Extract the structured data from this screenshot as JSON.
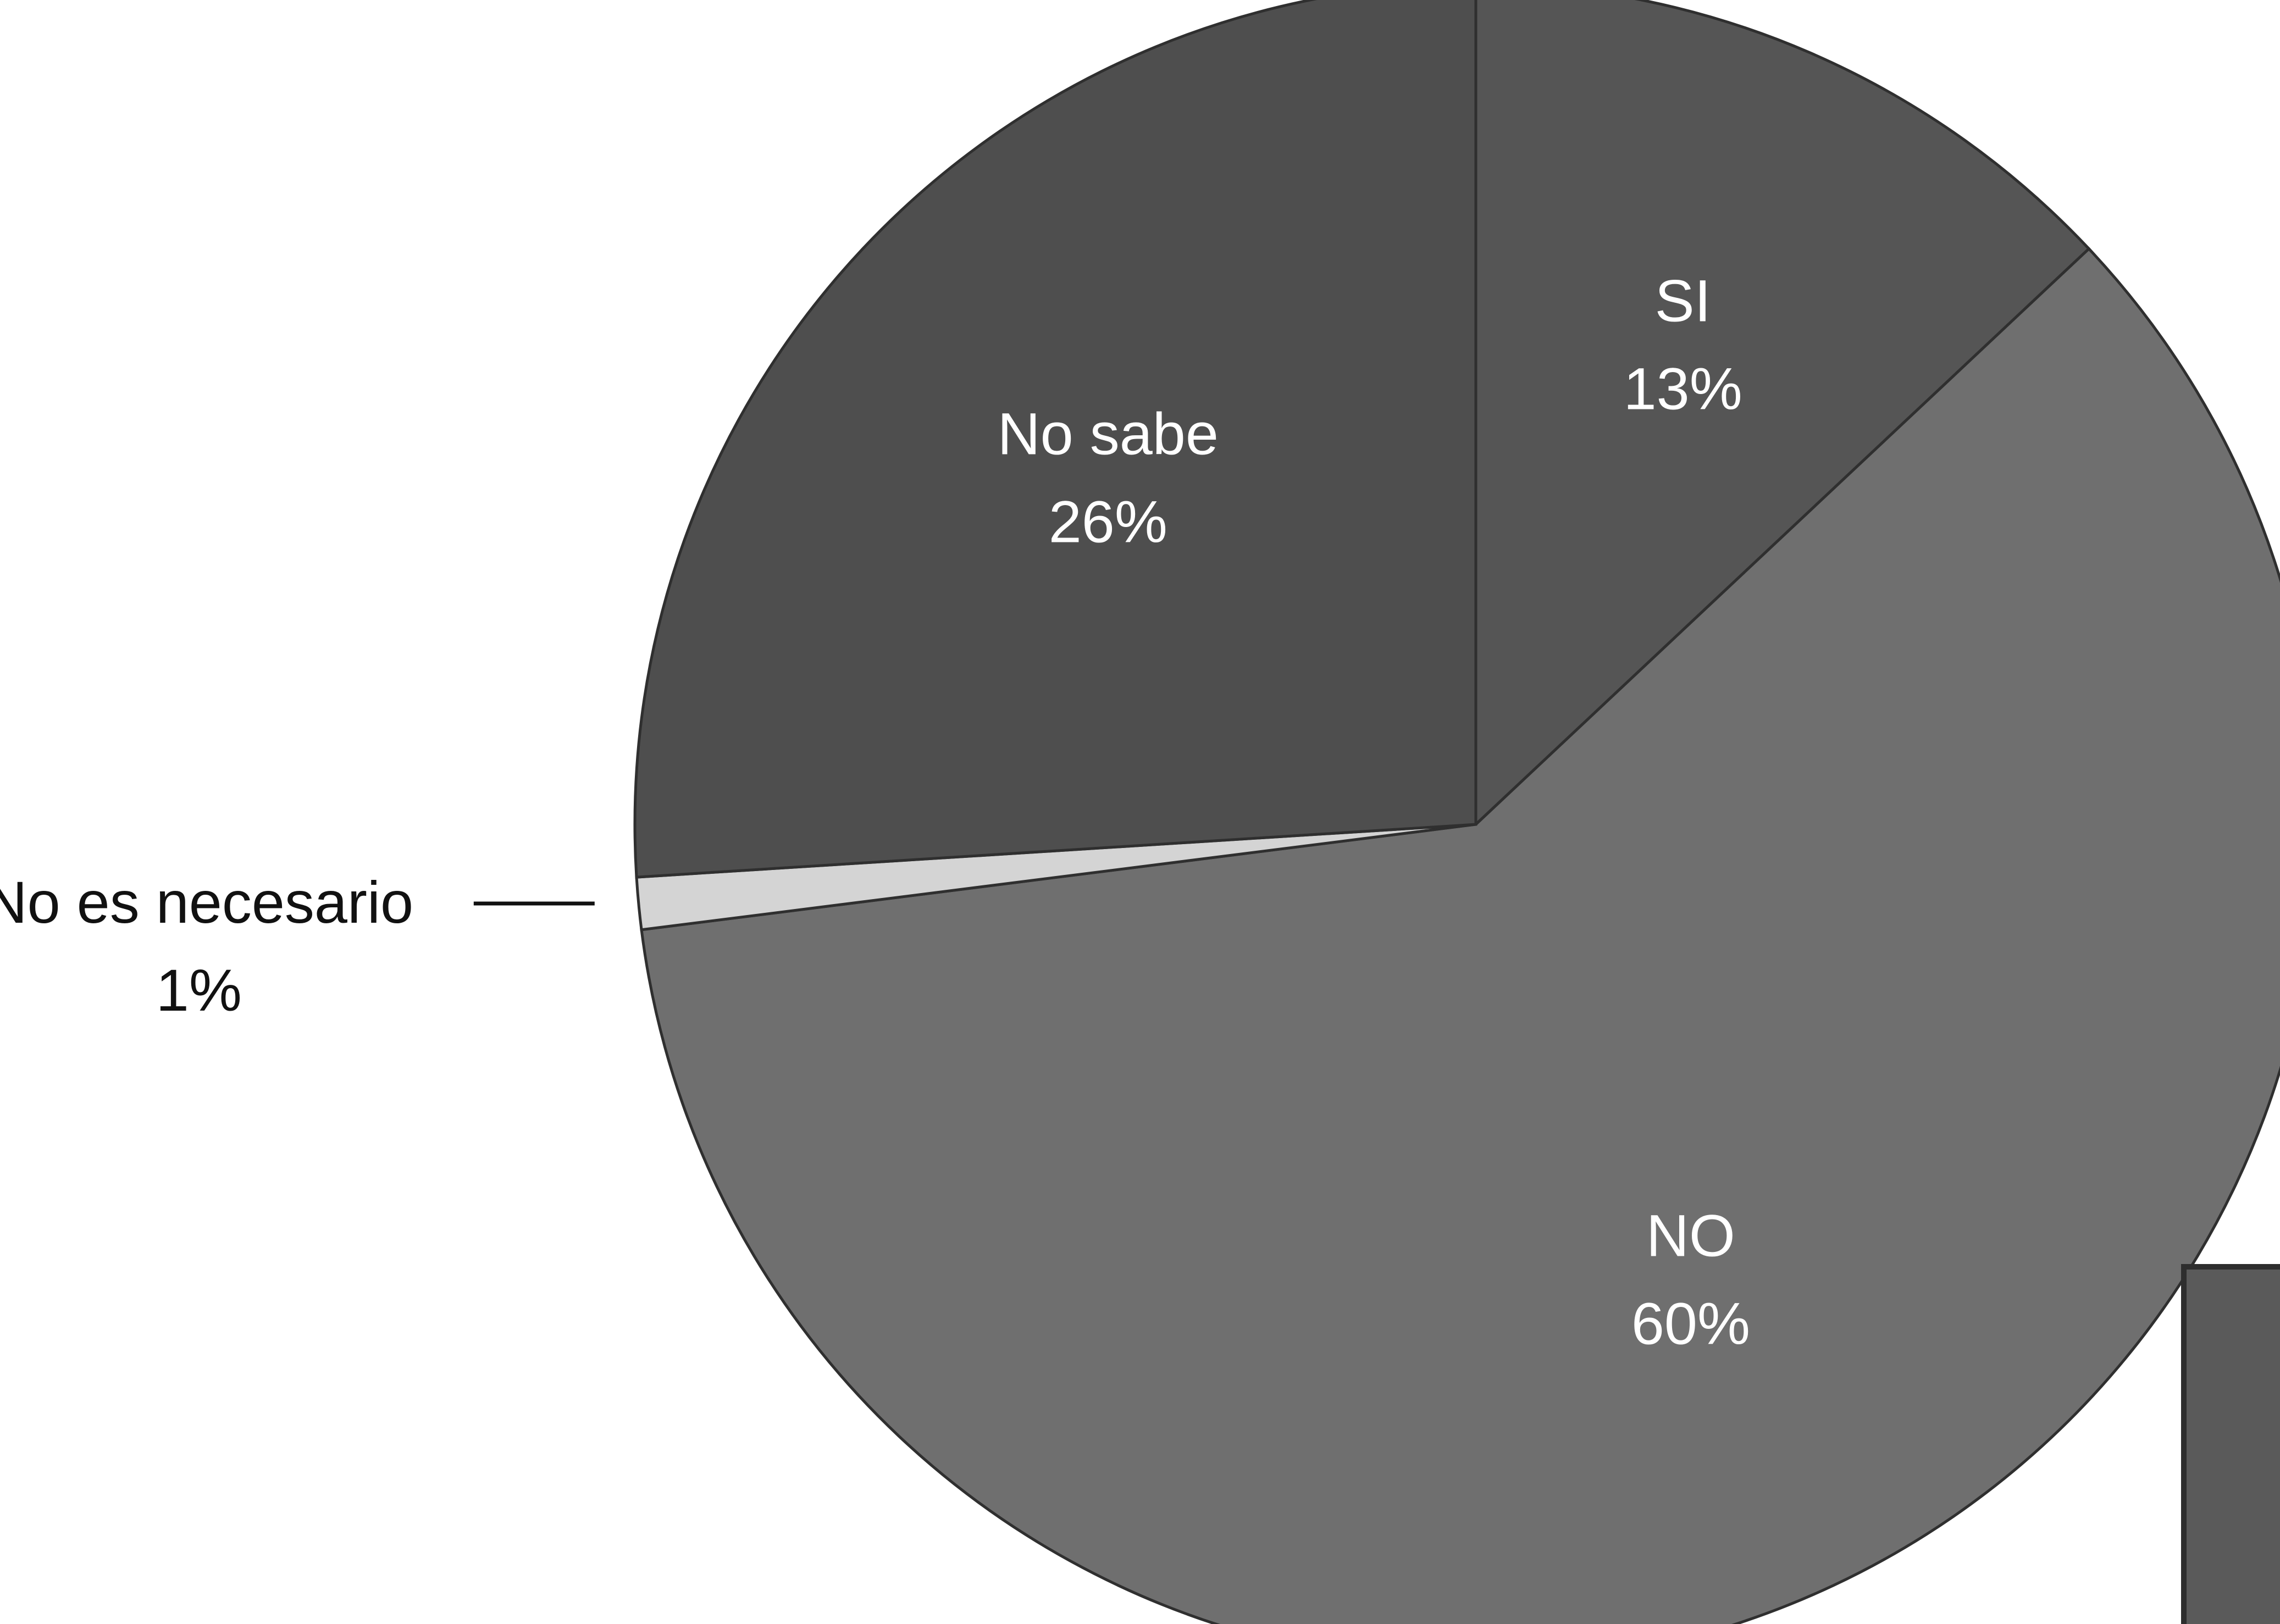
{
  "chart_data": {
    "type": "pie",
    "title": "",
    "start_angle_deg": 0,
    "direction": "clockwise",
    "legend": "none",
    "slices": [
      {
        "label": "SI",
        "value_label": "13%",
        "value": 13,
        "color": "#555555",
        "label_color": "#ffffff",
        "label_placement": "inside"
      },
      {
        "label": "NO",
        "value_label": "60%",
        "value": 60,
        "color": "#6f6f6f",
        "label_color": "#ffffff",
        "label_placement": "inside"
      },
      {
        "label": "No es necesario",
        "value_label": "1%",
        "value": 1,
        "color": "#d4d4d4",
        "label_color": "#111111",
        "label_placement": "outside-left"
      },
      {
        "label": "No sabe",
        "value_label": "26%",
        "value": 26,
        "color": "#4e4e4e",
        "label_color": "#ffffff",
        "label_placement": "inside"
      }
    ]
  }
}
